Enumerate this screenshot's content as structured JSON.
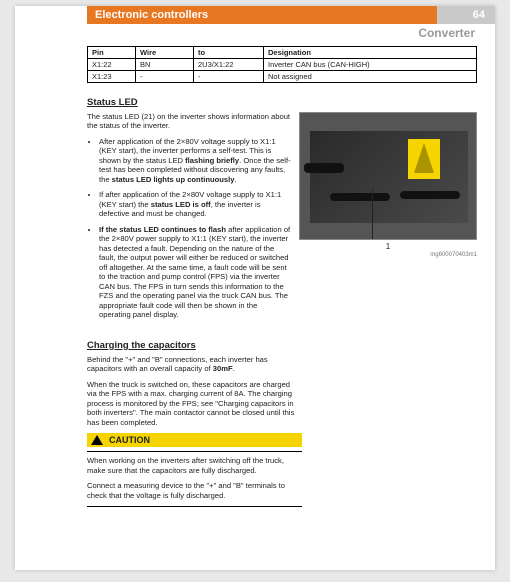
{
  "header": {
    "title": "Electronic controllers",
    "page_number": "64",
    "subtitle": "Converter"
  },
  "pin_table": {
    "columns": [
      "Pin",
      "Wire",
      "to",
      "Designation"
    ],
    "rows": [
      [
        "X1:22",
        "BN",
        "2U3/X1:22",
        "Inverter CAN bus (CAN-HIGH)"
      ],
      [
        "X1:23",
        "-",
        "-",
        "Not assigned"
      ]
    ]
  },
  "status_led": {
    "heading": "Status LED",
    "intro": "The status LED (21) on the inverter shows information about the status of the inverter.",
    "bullets": [
      "After application of the 2×80V voltage supply to X1:1 (KEY start), the inverter performs a self-test. This is shown by the status LED <b>flashing briefly</b>. Once the self-test has been completed without discovering any faults, the <b>status LED lights up continuously</b>.",
      "If after application of the 2×80V voltage supply to X1:1 (KEY start) the <b>status LED is off</b>, the inverter is defective and must be changed.",
      "<b>If the status LED continues to flash</b> after application of the 2×80V power supply to X1:1 (KEY start), the inverter has detected a fault. Depending on the nature of the fault, the output power will either be reduced or switched off altogether. At the same time, a fault code will be sent to the traction and pump control (FPS) via the inverter CAN bus. The FPS in turn sends this information to the FZS and the operating panel via the truck CAN bus. The appropriate fault code will then be shown in the operating panel display."
    ],
    "photo_label": "1",
    "photo_caption": "mg600070403m1"
  },
  "charging": {
    "heading": "Charging the capacitors",
    "p1": "Behind the \"+\" and \"B\" connections, each inverter has capacitors with an overall capacity of 30mF.",
    "p2": "When the truck is switched on, these capacitors are charged via the FPS with a max. charging current of 8A. The charging process is monitored by the FPS; see \"Charging capacitors in both inverters\". The main contactor cannot be closed until this has been completed."
  },
  "caution": {
    "label": "CAUTION",
    "p1": "When working on the inverters after switching off the truck, make sure that the capacitors are fully discharged.",
    "p2": "Connect a measuring device to the \"+\" and \"B\" terminals to check that the voltage is fully discharged."
  },
  "colors": {
    "orange": "#e87722",
    "gray": "#c9c9c9",
    "caution": "#f5d400"
  }
}
